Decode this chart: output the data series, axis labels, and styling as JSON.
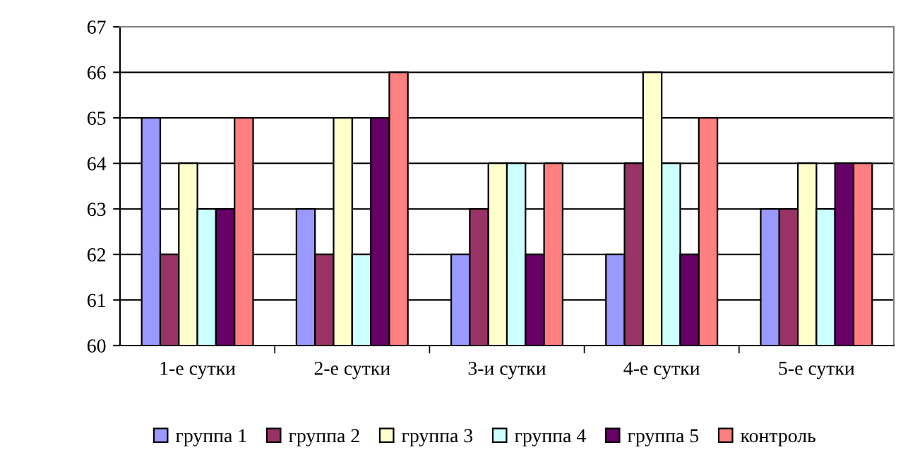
{
  "chart_data": {
    "type": "bar",
    "categories": [
      "1-е сутки",
      "2-е сутки",
      "3-и сутки",
      "4-е сутки",
      "5-е сутки"
    ],
    "series": [
      {
        "name": "группа 1",
        "color": "#9999ff",
        "values": [
          65,
          63,
          62,
          62,
          63
        ]
      },
      {
        "name": "группа 2",
        "color": "#993366",
        "values": [
          62,
          62,
          63,
          64,
          63
        ]
      },
      {
        "name": "группа 3",
        "color": "#ffffcc",
        "values": [
          64,
          65,
          64,
          66,
          64
        ]
      },
      {
        "name": "группа 4",
        "color": "#ccffff",
        "values": [
          63,
          62,
          64,
          64,
          63
        ]
      },
      {
        "name": "группа 5",
        "color": "#660066",
        "values": [
          63,
          65,
          62,
          62,
          64
        ]
      },
      {
        "name": "контроль",
        "color": "#ff8080",
        "values": [
          65,
          66,
          64,
          65,
          64
        ]
      }
    ],
    "ylim": [
      60,
      67
    ],
    "yticks": [
      60,
      61,
      62,
      63,
      64,
      65,
      66,
      67
    ],
    "grid": "y",
    "legend": "bottom"
  }
}
